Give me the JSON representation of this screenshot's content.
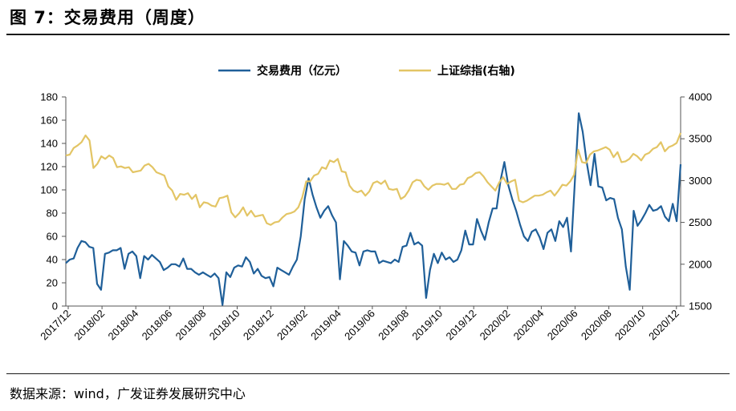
{
  "figure": {
    "title": "图 7：交易费用（周度）",
    "source": "数据来源：wind，广发证券发展研究中心"
  },
  "chart_data": {
    "type": "line",
    "legend_position": "top-center",
    "grid": false,
    "x_tick_labels": [
      "2017/12",
      "2018/02",
      "2018/04",
      "2018/06",
      "2018/08",
      "2018/10",
      "2018/12",
      "2019/02",
      "2019/04",
      "2019/06",
      "2019/08",
      "2019/10",
      "2019/12",
      "2020/02",
      "2020/04",
      "2020/06",
      "2020/08",
      "2020/10",
      "2020/12"
    ],
    "y_left": {
      "min": 0,
      "max": 180,
      "ticks": [
        0,
        20,
        40,
        60,
        80,
        100,
        120,
        140,
        160,
        180
      ]
    },
    "y_right": {
      "min": 1500,
      "max": 4000,
      "ticks": [
        1500,
        2000,
        2500,
        3000,
        3500,
        4000
      ]
    },
    "series": [
      {
        "name": "交易费用（亿元）",
        "axis": "left",
        "color": "#1f5f99",
        "values": [
          37,
          40,
          41,
          50,
          56,
          55,
          51,
          50,
          19,
          14,
          45,
          46,
          48,
          48,
          50,
          32,
          45,
          47,
          43,
          24,
          43,
          40,
          44,
          41,
          38,
          31,
          33,
          36,
          36,
          34,
          41,
          32,
          32,
          29,
          27,
          29,
          27,
          25,
          28,
          24,
          1,
          29,
          25,
          33,
          35,
          34,
          42,
          38,
          28,
          32,
          26,
          24,
          25,
          17,
          33,
          31,
          29,
          27,
          34,
          40,
          60,
          92,
          110,
          96,
          85,
          76,
          82,
          86,
          78,
          72,
          23,
          56,
          52,
          47,
          46,
          35,
          47,
          48,
          47,
          47,
          37,
          39,
          38,
          37,
          40,
          38,
          51,
          52,
          63,
          53,
          55,
          52,
          7,
          31,
          45,
          37,
          46,
          40,
          42,
          38,
          40,
          48,
          65,
          53,
          53,
          75,
          65,
          57,
          72,
          84,
          84,
          108,
          124,
          104,
          92,
          82,
          70,
          60,
          56,
          64,
          66,
          59,
          49,
          63,
          66,
          56,
          73,
          68,
          76,
          47,
          108,
          166,
          150,
          124,
          104,
          131,
          103,
          102,
          91,
          93,
          92,
          76,
          66,
          34,
          14,
          82,
          69,
          74,
          80,
          87,
          82,
          83,
          86,
          77,
          73,
          88,
          73,
          122
        ]
      },
      {
        "name": "上证综指(右轴)",
        "axis": "right",
        "color": "#e3c565",
        "values": [
          3300,
          3310,
          3390,
          3420,
          3460,
          3540,
          3480,
          3150,
          3200,
          3290,
          3260,
          3300,
          3270,
          3160,
          3170,
          3150,
          3160,
          3100,
          3110,
          3120,
          3180,
          3200,
          3160,
          3100,
          3080,
          3060,
          2930,
          2880,
          2770,
          2840,
          2830,
          2850,
          2780,
          2830,
          2680,
          2740,
          2730,
          2700,
          2690,
          2790,
          2800,
          2820,
          2620,
          2560,
          2610,
          2680,
          2580,
          2640,
          2570,
          2580,
          2590,
          2490,
          2470,
          2500,
          2510,
          2560,
          2600,
          2610,
          2630,
          2680,
          2800,
          2990,
          2990,
          3060,
          3080,
          3160,
          3140,
          3240,
          3220,
          3260,
          3110,
          3100,
          2940,
          2880,
          2860,
          2880,
          2820,
          2870,
          2970,
          2990,
          2960,
          3000,
          2900,
          2890,
          2900,
          2780,
          2810,
          2880,
          2980,
          3010,
          3000,
          2930,
          2890,
          2940,
          2960,
          2960,
          2950,
          2970,
          2900,
          2900,
          2950,
          2960,
          3030,
          3050,
          3090,
          3100,
          3050,
          2980,
          2930,
          2880,
          2980,
          3040,
          2960,
          2990,
          3010,
          2760,
          2740,
          2760,
          2790,
          2820,
          2820,
          2830,
          2860,
          2880,
          2820,
          2880,
          2950,
          2940,
          2990,
          3070,
          3370,
          3220,
          3210,
          3310,
          3350,
          3360,
          3380,
          3400,
          3370,
          3280,
          3340,
          3220,
          3230,
          3260,
          3320,
          3290,
          3240,
          3310,
          3330,
          3380,
          3400,
          3460,
          3350,
          3400,
          3420,
          3450,
          3570
        ]
      }
    ]
  }
}
